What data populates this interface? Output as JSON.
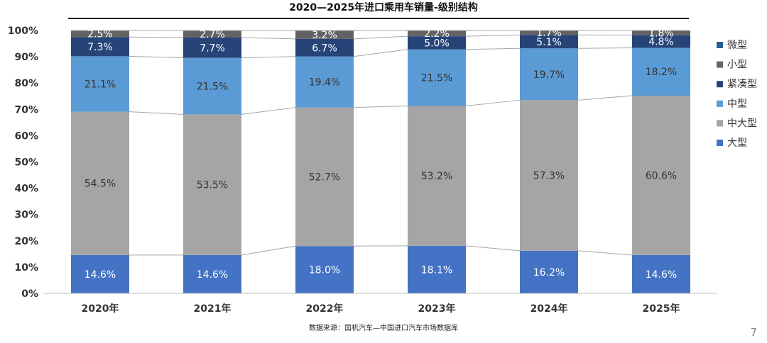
{
  "title": "2020—2025年进口乘用车销量-级别结构",
  "source": "数据来源：国机汽车—中国进口汽车市场数据库",
  "page_number": "7",
  "chart_data": {
    "type": "bar",
    "stacked": true,
    "percent_stacked": true,
    "categories": [
      "2020年",
      "2021年",
      "2022年",
      "2023年",
      "2024年",
      "2025年"
    ],
    "series": [
      {
        "name": "大型",
        "color": "#4472C4",
        "label_color": "#ffffff",
        "values": [
          14.6,
          14.6,
          18.0,
          18.1,
          16.2,
          14.6
        ]
      },
      {
        "name": "中大型",
        "color": "#A5A5A5",
        "label_color": "#333333",
        "values": [
          54.5,
          53.5,
          52.7,
          53.2,
          57.3,
          60.6
        ]
      },
      {
        "name": "中型",
        "color": "#5B9BD5",
        "label_color": "#333333",
        "values": [
          21.1,
          21.5,
          19.4,
          21.5,
          19.7,
          18.2
        ]
      },
      {
        "name": "紧凑型",
        "color": "#264478",
        "label_color": "#ffffff",
        "values": [
          7.3,
          7.7,
          6.7,
          5.0,
          5.1,
          4.8
        ]
      },
      {
        "name": "小型",
        "color": "#636363",
        "label_color": "#ffffff",
        "values": [
          2.5,
          2.7,
          3.2,
          2.2,
          1.7,
          1.8
        ]
      },
      {
        "name": "微型",
        "color": "#255E91",
        "label_color": "#ffffff",
        "values": [
          0,
          0,
          0,
          0,
          0,
          0
        ]
      }
    ],
    "y_ticks": [
      "0%",
      "10%",
      "20%",
      "30%",
      "40%",
      "50%",
      "60%",
      "70%",
      "80%",
      "90%",
      "100%"
    ],
    "ylim": [
      0,
      100
    ],
    "legend_order": [
      "微型",
      "小型",
      "紧凑型",
      "中型",
      "中大型",
      "大型"
    ],
    "legend_position": "right",
    "series_lines": true,
    "grid": false
  }
}
